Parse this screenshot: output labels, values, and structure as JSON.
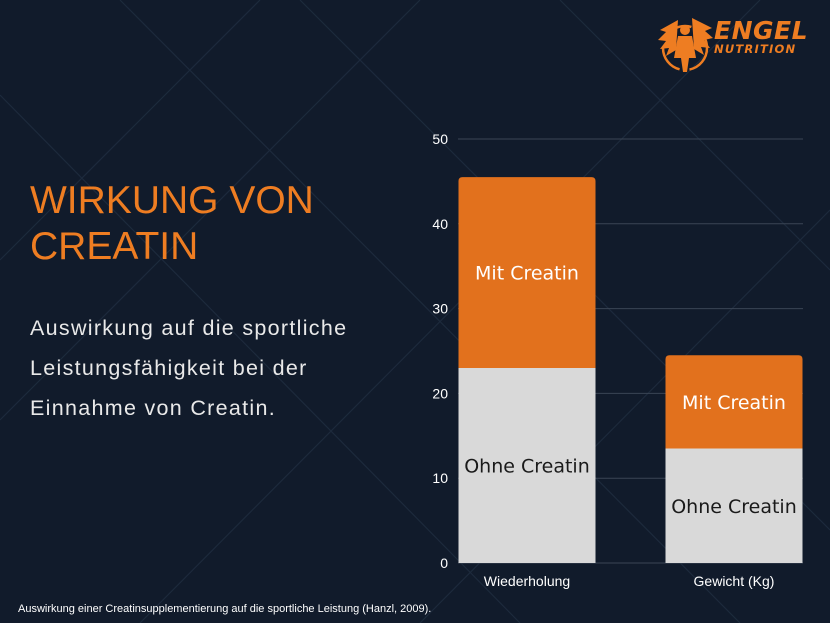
{
  "brand": {
    "name": "ENGEL",
    "tagline": "NUTRITION",
    "accent_color": "#ee7d22"
  },
  "heading": {
    "title": "WIRKUNG VON CREATIN",
    "subtitle": "Auswirkung auf die sportliche Leistungsfähigkeit bei der Einnahme von Creatin."
  },
  "caption": "Auswirkung einer Creatinsupplementierung auf die sportliche Leistung (Hanzl, 2009).",
  "chart_data": {
    "type": "bar",
    "stacked": true,
    "title": "",
    "xlabel": "",
    "ylabel": "",
    "categories": [
      "Wiederholung",
      "Gewicht (Kg)"
    ],
    "series": [
      {
        "name": "Ohne Creatin",
        "values": [
          23,
          13.5
        ],
        "color": "#d9d9d9",
        "label_color": "#1a1a1a"
      },
      {
        "name": "Mit Creatin",
        "values": [
          22.5,
          11
        ],
        "color": "#e2711d",
        "label_color": "#ffffff"
      }
    ],
    "ylim": [
      0,
      50
    ],
    "yticks": [
      0,
      10,
      20,
      30,
      40,
      50
    ],
    "grid": true,
    "legend": "none"
  }
}
